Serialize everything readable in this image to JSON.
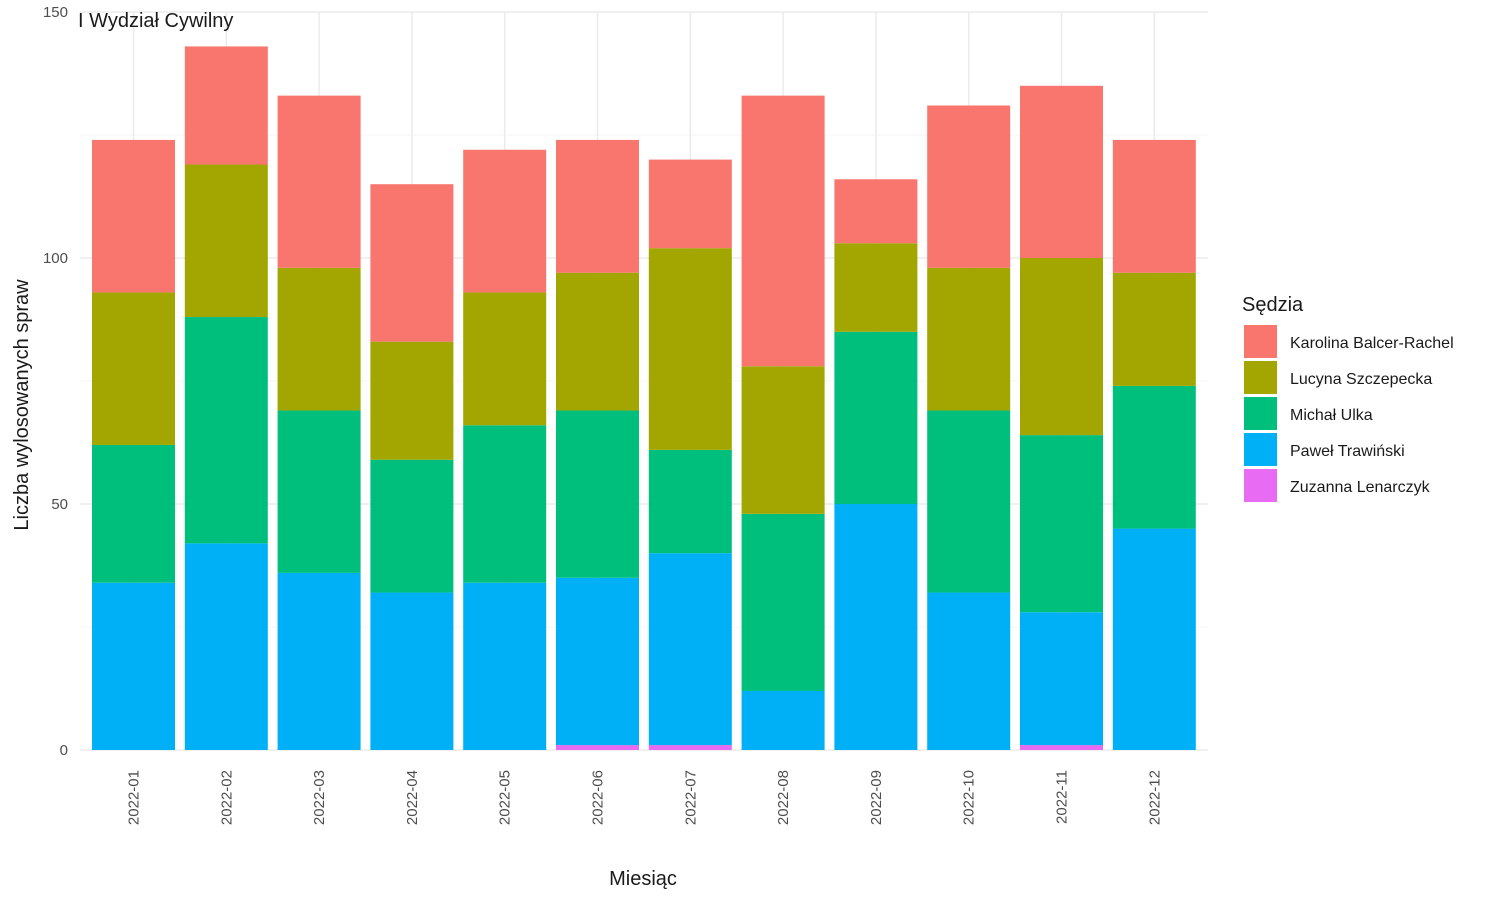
{
  "chart_data": {
    "type": "bar",
    "stacked": true,
    "title": "I Wydział Cywilny",
    "xlabel": "Miesiąc",
    "ylabel": "Liczba wylosowanych spraw",
    "ylim": [
      0,
      150
    ],
    "yticks": [
      0,
      50,
      100,
      150
    ],
    "grid": true,
    "legend": {
      "title": "Sędzia",
      "placement": "right"
    },
    "categories": [
      "2022-01",
      "2022-02",
      "2022-03",
      "2022-04",
      "2022-05",
      "2022-06",
      "2022-07",
      "2022-08",
      "2022-09",
      "2022-10",
      "2022-11",
      "2022-12"
    ],
    "series": [
      {
        "name": "Zuzanna Lenarczyk",
        "color": "#E76BF3",
        "values": [
          0,
          0,
          0,
          0,
          0,
          1,
          1,
          0,
          0,
          0,
          1,
          0
        ]
      },
      {
        "name": "Paweł Trawiński",
        "color": "#00B0F6",
        "values": [
          34,
          42,
          36,
          32,
          34,
          34,
          39,
          12,
          50,
          32,
          27,
          45
        ]
      },
      {
        "name": "Michał Ulka",
        "color": "#00BF7D",
        "values": [
          28,
          46,
          33,
          27,
          32,
          34,
          21,
          36,
          35,
          37,
          36,
          29
        ]
      },
      {
        "name": "Lucyna Szczepecka",
        "color": "#A3A500",
        "values": [
          31,
          31,
          29,
          24,
          27,
          28,
          41,
          30,
          18,
          29,
          36,
          23
        ]
      },
      {
        "name": "Karolina Balcer-Rachel",
        "color": "#F8766D",
        "values": [
          31,
          24,
          35,
          32,
          29,
          27,
          18,
          55,
          13,
          33,
          35,
          27
        ]
      }
    ],
    "legend_order": [
      "Karolina Balcer-Rachel",
      "Lucyna Szczepecka",
      "Michał Ulka",
      "Paweł Trawiński",
      "Zuzanna Lenarczyk"
    ]
  }
}
